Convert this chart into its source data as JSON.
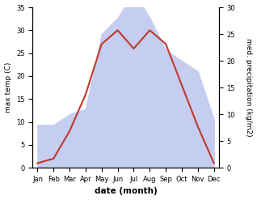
{
  "months": [
    "Jan",
    "Feb",
    "Mar",
    "Apr",
    "May",
    "Jun",
    "Jul",
    "Aug",
    "Sep",
    "Oct",
    "Nov",
    "Dec"
  ],
  "max_temp": [
    1,
    2,
    8,
    16,
    27,
    30,
    26,
    30,
    27,
    18,
    9,
    1
  ],
  "precipitation": [
    8,
    8,
    10,
    11,
    25,
    28,
    33,
    28,
    22,
    20,
    18,
    9
  ],
  "temp_color": "#c0392b",
  "precip_fill_color": "#c5cdf0",
  "temp_ylim": [
    0,
    35
  ],
  "precip_ylim": [
    0,
    30
  ],
  "temp_yticks": [
    0,
    5,
    10,
    15,
    20,
    25,
    30,
    35
  ],
  "precip_yticks": [
    0,
    5,
    10,
    15,
    20,
    25,
    30
  ],
  "ylabel_left": "max temp (C)",
  "ylabel_right": "med. precipitation (kg/m2)",
  "xlabel": "date (month)",
  "bg_color": "#ffffff",
  "line_width": 1.5
}
